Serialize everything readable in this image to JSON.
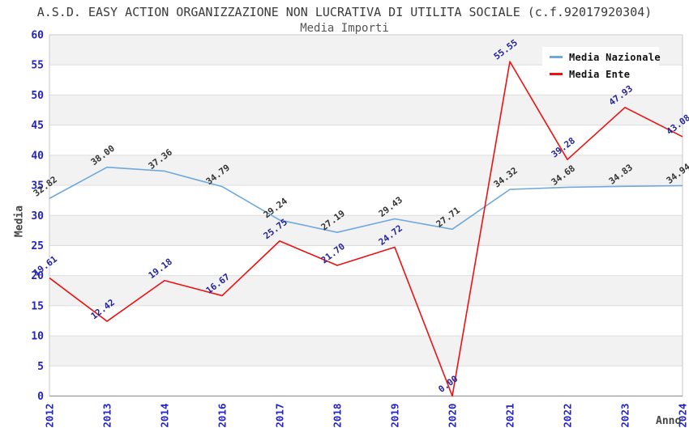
{
  "chart_data": {
    "type": "line",
    "title": "A.S.D. EASY ACTION ORGANIZZAZIONE NON LUCRATIVA DI UTILITA SOCIALE (c.f.92017920304)",
    "subtitle": "Media Importi",
    "xlabel": "Anno",
    "ylabel": "Media",
    "ylim": [
      0,
      60
    ],
    "ytick_step": 5,
    "grid": true,
    "alternating_bands": true,
    "legend_position": "top-right",
    "categories": [
      "2012",
      "2013",
      "2014",
      "2016",
      "2017",
      "2018",
      "2019",
      "2020",
      "2021",
      "2022",
      "2023",
      "2024"
    ],
    "series": [
      {
        "name": "Media Nazionale",
        "color": "#6fa8dc",
        "label_color": "#333333",
        "values": [
          32.82,
          38.0,
          37.36,
          34.79,
          29.24,
          27.19,
          29.43,
          27.71,
          34.32,
          34.68,
          34.83,
          34.94
        ],
        "labels": [
          "32.82",
          "38.00",
          "37.36",
          "34.79",
          "29.24",
          "27.19",
          "29.43",
          "27.71",
          "34.32",
          "34.68",
          "34.83",
          "34.94"
        ]
      },
      {
        "name": "Media Ente",
        "color": "#ee1111",
        "label_color": "#24249b",
        "values": [
          19.61,
          12.42,
          19.18,
          16.67,
          25.75,
          21.7,
          24.72,
          0.0,
          55.55,
          39.28,
          47.93,
          43.08
        ],
        "labels": [
          "19.61",
          "12.42",
          "19.18",
          "16.67",
          "25.75",
          "21.70",
          "24.72",
          "0.00",
          "55.55",
          "39.28",
          "47.93",
          "43.08"
        ]
      }
    ],
    "colors": {
      "axis_labels": "#2222cc",
      "band_gray": "#f2f2f2",
      "band_white": "#ffffff",
      "gridline": "#dddddd",
      "plot_border": "#c9c9c9",
      "axis_line": "#999999",
      "title": "#3a3a3a",
      "subtitle": "#555555",
      "axis_title": "#444444",
      "legend_text": "#111111",
      "legend_bg": "#ffffff"
    }
  }
}
